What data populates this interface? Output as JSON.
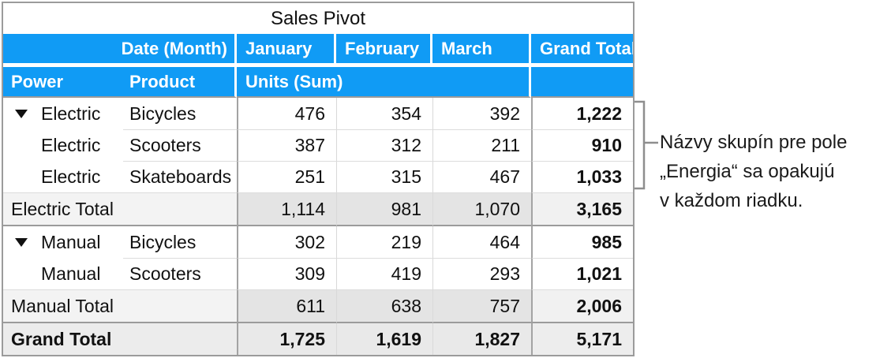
{
  "title": "Sales Pivot",
  "header": {
    "date_field": "Date (Month)",
    "months": [
      "January",
      "February",
      "March"
    ],
    "grand_total": "Grand Total",
    "row_fields": [
      "Power",
      "Product"
    ],
    "values_field": "Units (Sum)"
  },
  "rows": [
    {
      "type": "data",
      "power": "Electric",
      "product": "Bicycles",
      "values": [
        "476",
        "354",
        "392"
      ],
      "total": "1,222",
      "collapse_triangle": true,
      "group_first": true
    },
    {
      "type": "data",
      "power": "Electric",
      "product": "Scooters",
      "values": [
        "387",
        "312",
        "211"
      ],
      "total": "910"
    },
    {
      "type": "data",
      "power": "Electric",
      "product": "Skateboards",
      "values": [
        "251",
        "315",
        "467"
      ],
      "total": "1,033"
    },
    {
      "type": "subtotal",
      "label": "Electric Total",
      "values": [
        "1,114",
        "981",
        "1,070"
      ],
      "total": "3,165"
    },
    {
      "type": "data",
      "power": "Manual",
      "product": "Bicycles",
      "values": [
        "302",
        "219",
        "464"
      ],
      "total": "985",
      "collapse_triangle": true,
      "group_first": true
    },
    {
      "type": "data",
      "power": "Manual",
      "product": "Scooters",
      "values": [
        "309",
        "419",
        "293"
      ],
      "total": "1,021"
    },
    {
      "type": "subtotal",
      "label": "Manual Total",
      "values": [
        "611",
        "638",
        "757"
      ],
      "total": "2,006"
    },
    {
      "type": "grandtotal",
      "label": "Grand Total",
      "values": [
        "1,725",
        "1,619",
        "1,827"
      ],
      "total": "5,171"
    }
  ],
  "annotation": {
    "lines": [
      "Názvy skupín pre pole",
      "„Energia“ sa opakujú",
      "v každom riadku."
    ]
  },
  "colors": {
    "header_blue": "#109BF5",
    "border_dark": "#9B9B9B",
    "border_light": "#D9D9D9",
    "subtotal_label_bg": "#F3F3F3",
    "subtotal_month_bg": "#E4E4E4",
    "subtotal_total_bg": "#F1F1F1",
    "grandtotal_label_bg": "#ECECEC",
    "grandtotal_month_bg": "#E9E9E9",
    "grandtotal_total_bg": "#EDEDED",
    "bracket_gray": "#8E8E8E"
  }
}
